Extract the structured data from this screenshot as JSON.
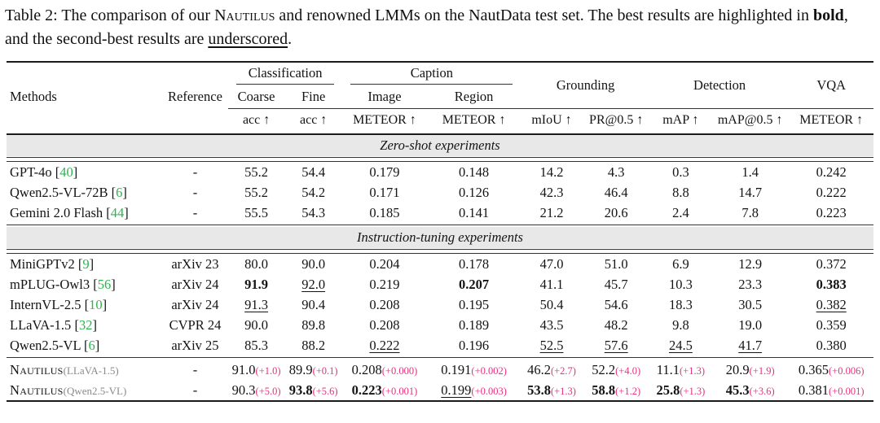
{
  "colors": {
    "accent_pink": "#e8317f",
    "citation_green": "#2cb54d",
    "variant_gray": "#8a8a8a",
    "band_gray": "#e8e8e8"
  },
  "caption": {
    "parts": [
      {
        "t": "Table 2: The comparison of our ",
        "s": ""
      },
      {
        "t": "Nautilus",
        "s": "sc"
      },
      {
        "t": " and renowned LMMs on the NautData test set. The best results are highlighted in ",
        "s": ""
      },
      {
        "t": "bold",
        "s": "b"
      },
      {
        "t": ", and the second-best results are ",
        "s": ""
      },
      {
        "t": "underscored",
        "s": "u"
      },
      {
        "t": ".",
        "s": ""
      }
    ]
  },
  "table": {
    "header": {
      "methods": "Methods",
      "reference": "Reference",
      "groups": [
        "Classification",
        "Caption",
        "Grounding",
        "Detection",
        "VQA"
      ],
      "subcols": [
        "Coarse",
        "Fine",
        "Image",
        "Region"
      ],
      "metrics": [
        "acc ↑",
        "acc ↑",
        "METEOR ↑",
        "METEOR ↑",
        "mIoU ↑",
        "PR@0.5 ↑",
        "mAP ↑",
        "mAP@0.5 ↑",
        "METEOR ↑"
      ]
    },
    "sections": [
      {
        "band": "Zero-shot experiments",
        "rows": [
          {
            "method": {
              "name": "GPT-4o",
              "cite": "40"
            },
            "reference": "-",
            "values": [
              {
                "v": "55.2"
              },
              {
                "v": "54.4"
              },
              {
                "v": "0.179"
              },
              {
                "v": "0.148"
              },
              {
                "v": "14.2"
              },
              {
                "v": "4.3"
              },
              {
                "v": "0.3"
              },
              {
                "v": "1.4"
              },
              {
                "v": "0.242"
              }
            ]
          },
          {
            "method": {
              "name": "Qwen2.5-VL-72B",
              "cite": "6"
            },
            "reference": "-",
            "values": [
              {
                "v": "55.2"
              },
              {
                "v": "54.2"
              },
              {
                "v": "0.171"
              },
              {
                "v": "0.126"
              },
              {
                "v": "42.3"
              },
              {
                "v": "46.4"
              },
              {
                "v": "8.8"
              },
              {
                "v": "14.7"
              },
              {
                "v": "0.222"
              }
            ]
          },
          {
            "method": {
              "name": "Gemini 2.0 Flash",
              "cite": "44"
            },
            "reference": "-",
            "values": [
              {
                "v": "55.5"
              },
              {
                "v": "54.3"
              },
              {
                "v": "0.185"
              },
              {
                "v": "0.141"
              },
              {
                "v": "21.2"
              },
              {
                "v": "20.6"
              },
              {
                "v": "2.4"
              },
              {
                "v": "7.8"
              },
              {
                "v": "0.223"
              }
            ]
          }
        ]
      },
      {
        "band": "Instruction-tuning experiments",
        "rows": [
          {
            "method": {
              "name": "MiniGPTv2",
              "cite": "9"
            },
            "reference": "arXiv 23",
            "values": [
              {
                "v": "80.0"
              },
              {
                "v": "90.0"
              },
              {
                "v": "0.204"
              },
              {
                "v": "0.178"
              },
              {
                "v": "47.0"
              },
              {
                "v": "51.0"
              },
              {
                "v": "6.9"
              },
              {
                "v": "12.9"
              },
              {
                "v": "0.372"
              }
            ]
          },
          {
            "method": {
              "name": "mPLUG-Owl3",
              "cite": "56"
            },
            "reference": "arXiv 24",
            "values": [
              {
                "v": "91.9",
                "b": 1
              },
              {
                "v": "92.0",
                "u": 1
              },
              {
                "v": "0.219"
              },
              {
                "v": "0.207",
                "b": 1
              },
              {
                "v": "41.1"
              },
              {
                "v": "45.7"
              },
              {
                "v": "10.3"
              },
              {
                "v": "23.3"
              },
              {
                "v": "0.383",
                "b": 1
              }
            ]
          },
          {
            "method": {
              "name": "InternVL-2.5",
              "cite": "10"
            },
            "reference": "arXiv 24",
            "values": [
              {
                "v": "91.3",
                "u": 1
              },
              {
                "v": "90.4"
              },
              {
                "v": "0.208"
              },
              {
                "v": "0.195"
              },
              {
                "v": "50.4"
              },
              {
                "v": "54.6"
              },
              {
                "v": "18.3"
              },
              {
                "v": "30.5"
              },
              {
                "v": "0.382",
                "u": 1
              }
            ]
          },
          {
            "method": {
              "name": "LLaVA-1.5",
              "cite": "32"
            },
            "reference": "CVPR 24",
            "values": [
              {
                "v": "90.0"
              },
              {
                "v": "89.8"
              },
              {
                "v": "0.208"
              },
              {
                "v": "0.189"
              },
              {
                "v": "43.5"
              },
              {
                "v": "48.2"
              },
              {
                "v": "9.8"
              },
              {
                "v": "19.0"
              },
              {
                "v": "0.359"
              }
            ]
          },
          {
            "method": {
              "name": "Qwen2.5-VL",
              "cite": "6"
            },
            "reference": "arXiv 25",
            "values": [
              {
                "v": "85.3"
              },
              {
                "v": "88.2"
              },
              {
                "v": "0.222",
                "u": 1
              },
              {
                "v": "0.196"
              },
              {
                "v": "52.5",
                "u": 1
              },
              {
                "v": "57.6",
                "u": 1
              },
              {
                "v": "24.5",
                "u": 1
              },
              {
                "v": "41.7",
                "u": 1
              },
              {
                "v": "0.380"
              }
            ]
          }
        ]
      },
      {
        "band": null,
        "rows": [
          {
            "method": {
              "name": "Nautilus",
              "sc": 1,
              "variant": "(LLaVA-1.5)"
            },
            "reference": "-",
            "values": [
              {
                "v": "91.0",
                "d": "(+1.0)"
              },
              {
                "v": "89.9",
                "d": "(+0.1)"
              },
              {
                "v": "0.208",
                "d": "(+0.000)"
              },
              {
                "v": "0.191",
                "d": "(+0.002)"
              },
              {
                "v": "46.2",
                "d": "(+2.7)"
              },
              {
                "v": "52.2",
                "d": "(+4.0)"
              },
              {
                "v": "11.1",
                "d": "(+1.3)"
              },
              {
                "v": "20.9",
                "d": "(+1.9)"
              },
              {
                "v": "0.365",
                "d": "(+0.006)"
              }
            ]
          },
          {
            "method": {
              "name": "Nautilus",
              "sc": 1,
              "variant": "(Qwen2.5-VL)"
            },
            "reference": "-",
            "values": [
              {
                "v": "90.3",
                "d": "(+5.0)"
              },
              {
                "v": "93.8",
                "b": 1,
                "d": "(+5.6)"
              },
              {
                "v": "0.223",
                "b": 1,
                "d": "(+0.001)"
              },
              {
                "v": "0.199",
                "u": 1,
                "d": "(+0.003)"
              },
              {
                "v": "53.8",
                "b": 1,
                "d": "(+1.3)"
              },
              {
                "v": "58.8",
                "b": 1,
                "d": "(+1.2)"
              },
              {
                "v": "25.8",
                "b": 1,
                "d": "(+1.3)"
              },
              {
                "v": "45.3",
                "b": 1,
                "d": "(+3.6)"
              },
              {
                "v": "0.381",
                "d": "(+0.001)"
              }
            ]
          }
        ]
      }
    ]
  }
}
